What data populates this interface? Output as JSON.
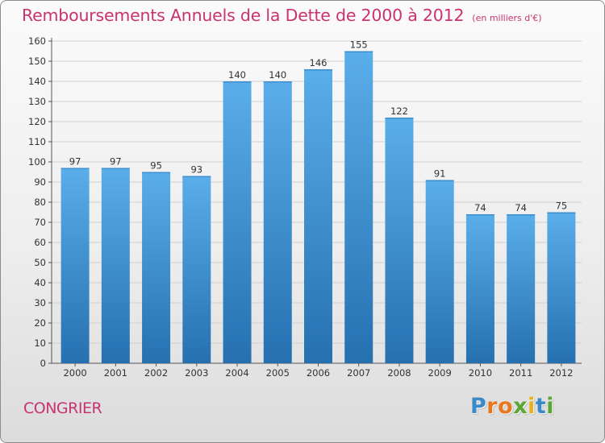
{
  "header": {
    "title": "Remboursements Annuels de la Dette de 2000 à 2012",
    "unit": "(en milliers d'€)"
  },
  "footer": {
    "city": "CONGRIER",
    "logo": "Proxiti",
    "logo_letters": [
      {
        "char": "P",
        "color": "#3a89c9"
      },
      {
        "char": "r",
        "color": "#e8771e"
      },
      {
        "char": "o",
        "color": "#e8771e"
      },
      {
        "char": "x",
        "color": "#5aa632"
      },
      {
        "char": "i",
        "color": "#e8b21e"
      },
      {
        "char": "t",
        "color": "#3a89c9"
      },
      {
        "char": "i",
        "color": "#5aa632"
      }
    ]
  },
  "colors": {
    "title": "#c8336f",
    "bar_top": "#5aaeea",
    "bar_bottom": "#2670b0",
    "grid": "#d0d0d0"
  },
  "chart_data": {
    "type": "bar",
    "title": "Remboursements Annuels de la Dette de 2000 à 2012",
    "subtitle": "(en milliers d'€)",
    "xlabel": "",
    "ylabel": "",
    "categories": [
      "2000",
      "2001",
      "2002",
      "2003",
      "2004",
      "2005",
      "2006",
      "2007",
      "2008",
      "2009",
      "2010",
      "2011",
      "2012"
    ],
    "values": [
      97,
      97,
      95,
      93,
      140,
      140,
      146,
      155,
      122,
      91,
      74,
      74,
      75
    ],
    "ylim": [
      0,
      160
    ],
    "yticks": [
      0,
      10,
      20,
      30,
      40,
      50,
      60,
      70,
      80,
      90,
      100,
      110,
      120,
      130,
      140,
      150,
      160
    ],
    "grid": true,
    "legend": "none",
    "data_labels": true
  }
}
